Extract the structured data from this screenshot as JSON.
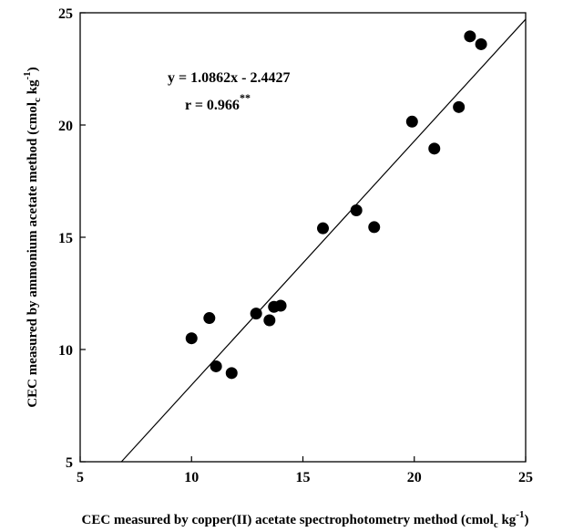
{
  "chart_data": {
    "type": "scatter",
    "title": "",
    "xlabel": {
      "prefix": "CEC measured by copper(II) acetate spectrophotometry method (cmol",
      "sub": "c",
      "mid": " kg",
      "sup": "-1",
      "suffix": ")"
    },
    "ylabel": {
      "prefix": "CEC measured by ammonium acetate method (cmol",
      "sub": "c",
      "mid": " kg",
      "sup": "-1",
      "suffix": ")"
    },
    "xlim": [
      5,
      25
    ],
    "ylim": [
      5,
      25
    ],
    "xticks": [
      5,
      10,
      15,
      20,
      25
    ],
    "yticks": [
      5,
      10,
      15,
      20,
      25
    ],
    "grid": false,
    "points": [
      {
        "x": 10.0,
        "y": 10.5
      },
      {
        "x": 10.8,
        "y": 11.4
      },
      {
        "x": 11.1,
        "y": 9.25
      },
      {
        "x": 11.8,
        "y": 8.95
      },
      {
        "x": 12.9,
        "y": 11.6
      },
      {
        "x": 13.5,
        "y": 11.3
      },
      {
        "x": 13.7,
        "y": 11.9
      },
      {
        "x": 14.0,
        "y": 11.95
      },
      {
        "x": 15.9,
        "y": 15.4
      },
      {
        "x": 17.4,
        "y": 16.2
      },
      {
        "x": 18.2,
        "y": 15.45
      },
      {
        "x": 19.9,
        "y": 20.15
      },
      {
        "x": 20.9,
        "y": 18.95
      },
      {
        "x": 22.0,
        "y": 20.8
      },
      {
        "x": 22.5,
        "y": 23.95
      },
      {
        "x": 23.0,
        "y": 23.6
      }
    ],
    "regression": {
      "slope": 1.0862,
      "intercept": -2.4427,
      "equation": "y = 1.0862x - 2.4427",
      "r_text": "r = 0.966",
      "r_sup": "**"
    }
  }
}
